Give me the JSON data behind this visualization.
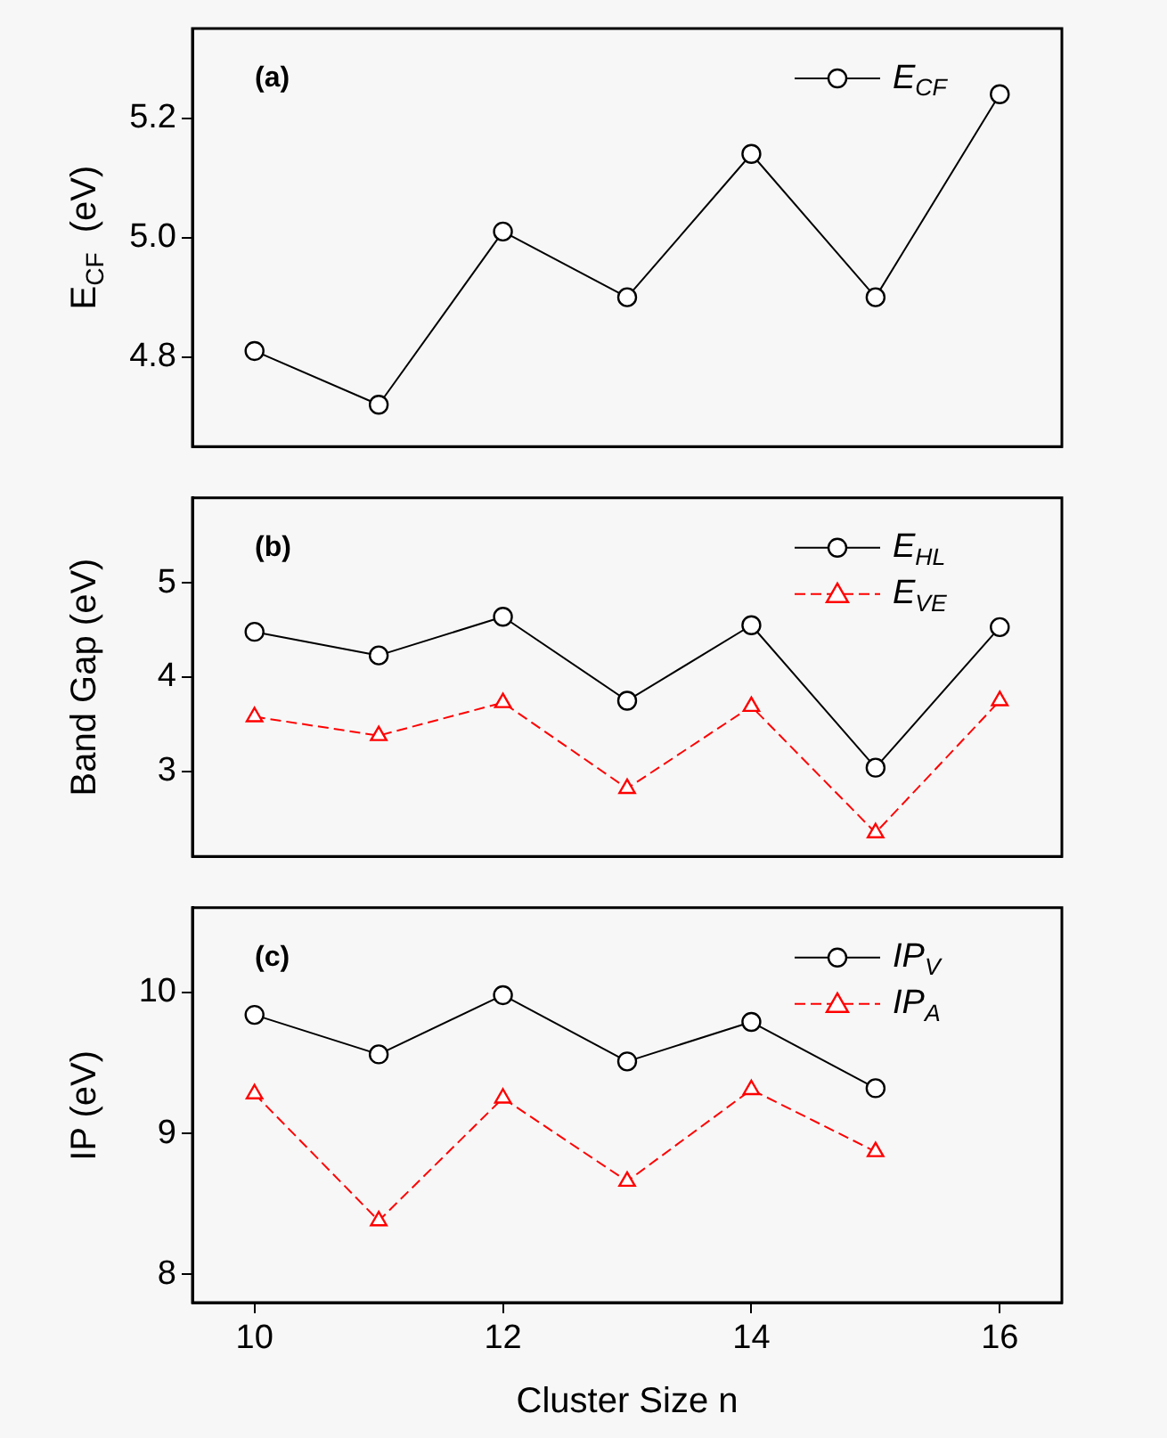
{
  "chart_data": [
    {
      "type": "line",
      "x": [
        10,
        11,
        12,
        13,
        14,
        15,
        16
      ],
      "ylabel": "E$_{CF}$  (eV)",
      "xlim": [
        9.5,
        16.5
      ],
      "xticks": [
        10,
        12,
        14,
        16
      ],
      "ylim": [
        4.65,
        5.35
      ],
      "yticks": [
        4.8,
        {
          "value": 5,
          "label": "5.0"
        },
        5.2
      ],
      "tick_labels": "y",
      "legend": "top right",
      "grid": false,
      "annotations": [
        "(a)"
      ],
      "series": [
        {
          "name": "E$_{CF}$",
          "color": "#000000",
          "marker": "circle",
          "line_style": "solid",
          "values": [
            4.81,
            4.72,
            5.01,
            4.9,
            5.14,
            4.9,
            5.24
          ]
        }
      ]
    },
    {
      "type": "line",
      "x": [
        10,
        11,
        12,
        13,
        14,
        15,
        16
      ],
      "ylabel": "Band Gap (eV)",
      "xlim": [
        9.5,
        16.5
      ],
      "xticks": [
        10,
        12,
        14,
        16
      ],
      "ylim": [
        2.1,
        5.9
      ],
      "yticks": [
        3,
        4,
        5
      ],
      "tick_labels": "y",
      "legend": "top right",
      "grid": false,
      "annotations": [
        "(b)"
      ],
      "series": [
        {
          "name": "E$_{HL}$",
          "color": "#000000",
          "marker": "circle",
          "line_style": "solid",
          "values": [
            4.48,
            4.23,
            4.64,
            3.75,
            4.55,
            3.04,
            4.53
          ]
        },
        {
          "name": "E$_{VE}$",
          "color": "#ff0000",
          "marker": "triangle",
          "line_style": "dashed",
          "values": [
            3.58,
            3.38,
            3.73,
            2.82,
            3.69,
            2.35,
            3.75
          ]
        }
      ]
    },
    {
      "type": "line",
      "x": [
        10,
        11,
        12,
        13,
        14,
        15
      ],
      "xlabel": "Cluster Size n",
      "ylabel": "IP (eV)",
      "xlim": [
        9.5,
        16.5
      ],
      "xticks": [
        10,
        12,
        14,
        16
      ],
      "ylim": [
        7.8,
        10.6
      ],
      "yticks": [
        8,
        9,
        10
      ],
      "legend": "top right",
      "grid": false,
      "annotations": [
        "(c)"
      ],
      "series": [
        {
          "name": "IP$_{V}$",
          "color": "#000000",
          "marker": "circle",
          "line_style": "solid",
          "values": [
            9.84,
            9.56,
            9.98,
            9.51,
            9.79,
            9.32
          ]
        },
        {
          "name": "IP$_{A}$",
          "color": "#ff0000",
          "marker": "triangle",
          "line_style": "dashed",
          "values": [
            9.28,
            8.38,
            9.25,
            8.66,
            9.31,
            8.87
          ]
        }
      ]
    }
  ]
}
